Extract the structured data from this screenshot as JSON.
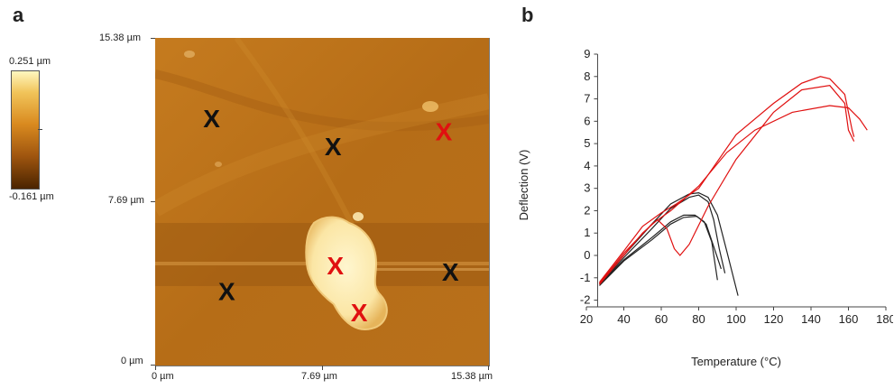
{
  "panels": {
    "a": "a",
    "b": "b"
  },
  "afm": {
    "scale_top": "0.251 µm",
    "scale_bottom": "-0.161 µm",
    "y_ticks": [
      "15.38 µm",
      "7.69 µm",
      "0 µm"
    ],
    "x_ticks": [
      "0 µm",
      "7.69 µm",
      "15.38 µm"
    ],
    "markers": [
      {
        "label": "X",
        "color": "#111111",
        "x_um": 2.6,
        "y_um": 11.6
      },
      {
        "label": "X",
        "color": "#111111",
        "x_um": 8.2,
        "y_um": 10.3
      },
      {
        "label": "X",
        "color": "#e01010",
        "x_um": 13.3,
        "y_um": 11.0
      },
      {
        "label": "X",
        "color": "#e01010",
        "x_um": 8.3,
        "y_um": 4.7
      },
      {
        "label": "X",
        "color": "#111111",
        "x_um": 3.3,
        "y_um": 3.5
      },
      {
        "label": "X",
        "color": "#111111",
        "x_um": 13.6,
        "y_um": 4.4
      },
      {
        "label": "X",
        "color": "#e01010",
        "x_um": 9.4,
        "y_um": 2.5
      }
    ]
  },
  "chart_data": {
    "type": "line",
    "xlabel": "Temperature (°C)",
    "ylabel": "Deflection (V)",
    "xlim": [
      20,
      180
    ],
    "ylim": [
      -2.3,
      9
    ],
    "x_ticks": [
      20,
      40,
      60,
      80,
      100,
      120,
      140,
      160,
      180
    ],
    "y_ticks": [
      -2,
      -1,
      0,
      1,
      2,
      3,
      4,
      5,
      6,
      7,
      8,
      9
    ],
    "series": [
      {
        "color": "#222222",
        "points": [
          [
            27,
            -1.3
          ],
          [
            40,
            -0.1
          ],
          [
            55,
            1.2
          ],
          [
            65,
            2.1
          ],
          [
            75,
            2.6
          ],
          [
            80,
            2.7
          ],
          [
            85,
            2.4
          ],
          [
            88,
            1.6
          ],
          [
            91,
            0.3
          ],
          [
            94,
            -0.8
          ]
        ]
      },
      {
        "color": "#222222",
        "points": [
          [
            27,
            -1.25
          ],
          [
            40,
            0.0
          ],
          [
            55,
            1.4
          ],
          [
            65,
            2.3
          ],
          [
            75,
            2.75
          ],
          [
            80,
            2.8
          ],
          [
            85,
            2.6
          ],
          [
            90,
            1.8
          ],
          [
            95,
            0.2
          ],
          [
            101,
            -1.8
          ]
        ]
      },
      {
        "color": "#222222",
        "points": [
          [
            27,
            -1.3
          ],
          [
            40,
            -0.2
          ],
          [
            55,
            0.8
          ],
          [
            65,
            1.5
          ],
          [
            72,
            1.8
          ],
          [
            78,
            1.8
          ],
          [
            83,
            1.5
          ],
          [
            87,
            0.6
          ],
          [
            90,
            -1.1
          ]
        ]
      },
      {
        "color": "#222222",
        "points": [
          [
            27,
            -1.35
          ],
          [
            40,
            -0.25
          ],
          [
            55,
            0.7
          ],
          [
            65,
            1.4
          ],
          [
            72,
            1.7
          ],
          [
            79,
            1.75
          ],
          [
            84,
            1.4
          ],
          [
            88,
            0.4
          ],
          [
            92,
            -0.6
          ]
        ]
      },
      {
        "color": "#e01010",
        "points": [
          [
            27,
            -1.3
          ],
          [
            40,
            0.0
          ],
          [
            50,
            1.0
          ],
          [
            58,
            1.6
          ],
          [
            63,
            1.2
          ],
          [
            67,
            0.3
          ],
          [
            70,
            0.0
          ],
          [
            75,
            0.5
          ],
          [
            85,
            2.2
          ],
          [
            100,
            4.3
          ],
          [
            120,
            6.4
          ],
          [
            135,
            7.4
          ],
          [
            150,
            7.6
          ],
          [
            158,
            6.8
          ],
          [
            160,
            5.6
          ],
          [
            163,
            5.1
          ]
        ]
      },
      {
        "color": "#e01010",
        "points": [
          [
            27,
            -1.2
          ],
          [
            40,
            0.2
          ],
          [
            50,
            1.3
          ],
          [
            60,
            1.9
          ],
          [
            68,
            2.3
          ],
          [
            80,
            3.0
          ],
          [
            100,
            5.4
          ],
          [
            120,
            6.8
          ],
          [
            135,
            7.7
          ],
          [
            145,
            8.0
          ],
          [
            150,
            7.9
          ],
          [
            158,
            7.2
          ],
          [
            162,
            5.6
          ],
          [
            163,
            5.3
          ]
        ]
      },
      {
        "color": "#e01010",
        "points": [
          [
            27,
            -1.25
          ],
          [
            40,
            0.1
          ],
          [
            55,
            1.4
          ],
          [
            65,
            2.0
          ],
          [
            80,
            3.1
          ],
          [
            95,
            4.6
          ],
          [
            110,
            5.6
          ],
          [
            130,
            6.4
          ],
          [
            150,
            6.7
          ],
          [
            160,
            6.6
          ],
          [
            166,
            6.1
          ],
          [
            170,
            5.6
          ]
        ]
      }
    ]
  }
}
